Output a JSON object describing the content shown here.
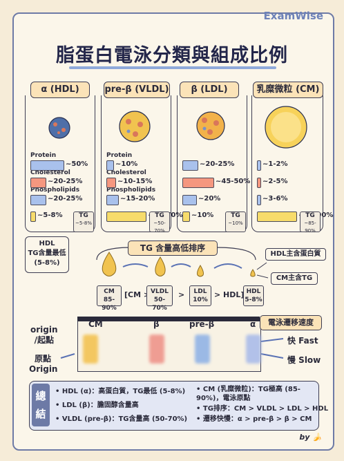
{
  "brand": "ExamWise",
  "title": "脂蛋白電泳分類與組成比例",
  "columns": [
    {
      "name": "α (HDL)",
      "labels": [
        "Protein",
        "Cholesterol",
        "Phospholipids"
      ],
      "pcts": [
        "~50%",
        "~20-25%",
        "~20-25%",
        "~5-8%"
      ],
      "fills": [
        0.5,
        0.225,
        0.225,
        0.065
      ],
      "tg": "TG",
      "tg_range": "~5-8%"
    },
    {
      "name": "pre-β (VLDL)",
      "labels": [
        "Protein",
        "Cholesterol",
        "Phospholipids"
      ],
      "pcts": [
        "~10%",
        "~10-15%",
        "~15-20%",
        "~50-70%"
      ],
      "fills": [
        0.1,
        0.125,
        0.175,
        0.6
      ],
      "tg": "TG",
      "tg_range": "~50-70%"
    },
    {
      "name": "β (LDL)",
      "labels": [],
      "pcts": [
        "~20-25%",
        "~45-50%",
        "~20%",
        "~10%"
      ],
      "fills": [
        0.225,
        0.475,
        0.2,
        0.1
      ],
      "tg": "TG",
      "tg_range": "~10%"
    },
    {
      "name": "乳糜微粒 (CM)",
      "labels": [],
      "pcts": [
        "~1-2%",
        "~2-5%",
        "~3-6%",
        "~85-90%"
      ],
      "fills": [
        0.015,
        0.035,
        0.045,
        0.875
      ],
      "tg": "TG",
      "tg_range": "~85-90%"
    }
  ],
  "colors": {
    "protein": "#a9c1ec",
    "cholesterol": "#f5977f",
    "phospholipid": "#a9c1ec",
    "tg": "#f7dc6b"
  },
  "hdl_callout": {
    "line1": "HDL",
    "line2": "TG含量最低",
    "line3": "(5-8%)"
  },
  "tg_sort_label": "TG 含量高低排序",
  "hdl_note": "HDL主含蛋白質",
  "cm_note": "CM主含TG",
  "order": [
    {
      "name": "CM",
      "range": "85-90%"
    },
    {
      "name": "VLDL",
      "range": "50-70%"
    },
    {
      "name": "LDL",
      "range": "10%"
    },
    {
      "name": "HDL",
      "range": "5-8%"
    }
  ],
  "order_text": {
    "open": "[CM >",
    "gt1": ">",
    "gt2": "> HDL]"
  },
  "electrophoresis": {
    "title": "電泳遷移速度",
    "origin": "origin\n/起點",
    "origin_cn": "原點",
    "origin_en": "Origin",
    "lanes": [
      "CM",
      "β",
      "pre-β",
      "α"
    ],
    "fast": "快 Fast",
    "slow": "慢 Slow"
  },
  "summary": {
    "head": "總結",
    "left": [
      "• HDL (α)：高蛋白質，TG最低 (5-8%)",
      "• LDL (β)：膽固醇含量高",
      "• VLDL (pre-β)：TG含量高 (50-70%)"
    ],
    "right": [
      "• CM (乳糜微粒)：TG極高 (85-",
      "  90%)，電泳原點",
      "• TG排序：CM > VLDL > LDL > HDL",
      "• 遷移快慢：α > pre-β > β > CM"
    ]
  },
  "credit": "by 🍌"
}
